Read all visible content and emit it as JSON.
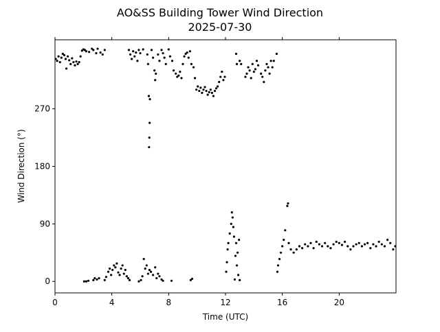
{
  "chart_data": {
    "type": "scatter",
    "title": "AO&SS Building Tower Wind Direction",
    "subtitle": "2025-07-30",
    "xlabel": "Time (UTC)",
    "ylabel": "Wind Direction (°)",
    "xlim": [
      0,
      24
    ],
    "ylim": [
      -18,
      378
    ],
    "xticks": [
      0,
      4,
      8,
      12,
      16,
      20
    ],
    "xtick_labels": [
      "0",
      "4",
      "8",
      "12",
      "16",
      "20"
    ],
    "yticks": [
      0,
      90,
      180,
      270
    ],
    "ytick_labels": [
      "0",
      "90",
      "180",
      "270"
    ],
    "grid": false,
    "marker_color": "#000000",
    "points": [
      [
        0.05,
        348
      ],
      [
        0.15,
        345
      ],
      [
        0.25,
        352
      ],
      [
        0.35,
        343
      ],
      [
        0.45,
        350
      ],
      [
        0.55,
        356
      ],
      [
        0.65,
        354
      ],
      [
        0.75,
        348
      ],
      [
        0.8,
        333
      ],
      [
        0.9,
        352
      ],
      [
        1.0,
        346
      ],
      [
        1.1,
        340
      ],
      [
        1.2,
        349
      ],
      [
        1.3,
        343
      ],
      [
        1.4,
        338
      ],
      [
        1.5,
        344
      ],
      [
        1.6,
        340
      ],
      [
        1.7,
        343
      ],
      [
        1.8,
        352
      ],
      [
        1.9,
        361
      ],
      [
        2.0,
        363
      ],
      [
        2.1,
        362
      ],
      [
        2.2,
        360
      ],
      [
        2.4,
        359
      ],
      [
        2.6,
        364
      ],
      [
        2.7,
        362
      ],
      [
        2.9,
        357
      ],
      [
        3.0,
        364
      ],
      [
        3.2,
        358
      ],
      [
        3.35,
        355
      ],
      [
        3.5,
        362
      ],
      [
        2.05,
        0
      ],
      [
        2.2,
        0
      ],
      [
        2.35,
        1
      ],
      [
        2.7,
        2
      ],
      [
        2.8,
        5
      ],
      [
        2.95,
        3
      ],
      [
        3.1,
        5
      ],
      [
        3.5,
        2
      ],
      [
        3.6,
        7
      ],
      [
        3.75,
        15
      ],
      [
        3.85,
        20
      ],
      [
        3.95,
        10
      ],
      [
        4.05,
        18
      ],
      [
        4.15,
        25
      ],
      [
        4.25,
        22
      ],
      [
        4.35,
        28
      ],
      [
        4.45,
        14
      ],
      [
        4.55,
        10
      ],
      [
        4.65,
        20
      ],
      [
        4.75,
        25
      ],
      [
        4.85,
        12
      ],
      [
        4.95,
        18
      ],
      [
        5.05,
        8
      ],
      [
        5.15,
        5
      ],
      [
        5.25,
        2
      ],
      [
        5.2,
        362
      ],
      [
        5.3,
        355
      ],
      [
        5.4,
        348
      ],
      [
        5.5,
        360
      ],
      [
        5.6,
        352
      ],
      [
        5.7,
        358
      ],
      [
        5.8,
        345
      ],
      [
        5.9,
        362
      ],
      [
        6.0,
        357
      ],
      [
        6.2,
        363
      ],
      [
        5.9,
        0
      ],
      [
        6.05,
        2
      ],
      [
        6.15,
        8
      ],
      [
        6.25,
        35
      ],
      [
        6.35,
        20
      ],
      [
        6.45,
        25
      ],
      [
        6.55,
        12
      ],
      [
        6.65,
        18
      ],
      [
        6.75,
        15
      ],
      [
        6.9,
        10
      ],
      [
        7.05,
        22
      ],
      [
        7.15,
        5
      ],
      [
        7.25,
        12
      ],
      [
        7.35,
        8
      ],
      [
        7.5,
        3
      ],
      [
        7.6,
        1
      ],
      [
        8.2,
        1
      ],
      [
        6.5,
        355
      ],
      [
        6.55,
        340
      ],
      [
        6.6,
        290
      ],
      [
        6.62,
        210
      ],
      [
        6.64,
        225
      ],
      [
        6.66,
        248
      ],
      [
        6.68,
        285
      ],
      [
        6.8,
        362
      ],
      [
        6.9,
        350
      ],
      [
        7.0,
        330
      ],
      [
        7.05,
        315
      ],
      [
        7.1,
        325
      ],
      [
        7.25,
        355
      ],
      [
        7.35,
        345
      ],
      [
        7.5,
        362
      ],
      [
        7.6,
        357
      ],
      [
        7.7,
        350
      ],
      [
        7.8,
        340
      ],
      [
        8.0,
        363
      ],
      [
        8.1,
        352
      ],
      [
        8.25,
        345
      ],
      [
        8.35,
        330
      ],
      [
        8.5,
        325
      ],
      [
        8.6,
        320
      ],
      [
        8.7,
        322
      ],
      [
        8.8,
        328
      ],
      [
        8.9,
        318
      ],
      [
        9.0,
        340
      ],
      [
        9.1,
        352
      ],
      [
        9.2,
        356
      ],
      [
        9.3,
        358
      ],
      [
        9.4,
        350
      ],
      [
        9.5,
        360
      ],
      [
        9.6,
        340
      ],
      [
        9.55,
        2
      ],
      [
        9.65,
        4
      ],
      [
        9.75,
        335
      ],
      [
        9.85,
        318
      ],
      [
        9.95,
        300
      ],
      [
        10.05,
        305
      ],
      [
        10.15,
        298
      ],
      [
        10.25,
        303
      ],
      [
        10.35,
        295
      ],
      [
        10.45,
        300
      ],
      [
        10.55,
        304
      ],
      [
        10.65,
        298
      ],
      [
        10.75,
        292
      ],
      [
        10.85,
        296
      ],
      [
        10.95,
        300
      ],
      [
        11.05,
        295
      ],
      [
        11.15,
        290
      ],
      [
        11.25,
        298
      ],
      [
        11.35,
        302
      ],
      [
        11.45,
        305
      ],
      [
        11.55,
        312
      ],
      [
        11.65,
        320
      ],
      [
        11.75,
        328
      ],
      [
        11.85,
        315
      ],
      [
        11.95,
        320
      ],
      [
        12.05,
        15
      ],
      [
        12.1,
        30
      ],
      [
        12.15,
        50
      ],
      [
        12.2,
        60
      ],
      [
        12.3,
        75
      ],
      [
        12.4,
        90
      ],
      [
        12.45,
        108
      ],
      [
        12.5,
        100
      ],
      [
        12.55,
        85
      ],
      [
        12.6,
        70
      ],
      [
        12.65,
        3
      ],
      [
        12.7,
        40
      ],
      [
        12.75,
        60
      ],
      [
        12.8,
        25
      ],
      [
        12.85,
        45
      ],
      [
        12.9,
        10
      ],
      [
        12.95,
        65
      ],
      [
        13.0,
        2
      ],
      [
        12.75,
        356
      ],
      [
        12.8,
        340
      ],
      [
        13.0,
        345
      ],
      [
        13.1,
        340
      ],
      [
        13.4,
        320
      ],
      [
        13.5,
        325
      ],
      [
        13.6,
        335
      ],
      [
        13.7,
        330
      ],
      [
        13.8,
        318
      ],
      [
        13.9,
        340
      ],
      [
        14.0,
        328
      ],
      [
        14.1,
        332
      ],
      [
        14.2,
        345
      ],
      [
        14.3,
        338
      ],
      [
        14.5,
        325
      ],
      [
        14.6,
        320
      ],
      [
        14.7,
        312
      ],
      [
        14.8,
        330
      ],
      [
        14.9,
        340
      ],
      [
        15.0,
        335
      ],
      [
        15.1,
        325
      ],
      [
        15.2,
        345
      ],
      [
        15.3,
        335
      ],
      [
        15.4,
        345
      ],
      [
        15.6,
        356
      ],
      [
        15.65,
        15
      ],
      [
        15.7,
        25
      ],
      [
        15.8,
        35
      ],
      [
        15.9,
        45
      ],
      [
        16.0,
        55
      ],
      [
        16.1,
        65
      ],
      [
        16.2,
        80
      ],
      [
        16.35,
        118
      ],
      [
        16.4,
        122
      ],
      [
        16.45,
        60
      ],
      [
        16.6,
        50
      ],
      [
        16.8,
        45
      ],
      [
        17.0,
        50
      ],
      [
        17.2,
        55
      ],
      [
        17.4,
        52
      ],
      [
        17.6,
        58
      ],
      [
        17.8,
        55
      ],
      [
        18.0,
        60
      ],
      [
        18.2,
        52
      ],
      [
        18.4,
        62
      ],
      [
        18.6,
        58
      ],
      [
        18.8,
        55
      ],
      [
        19.0,
        60
      ],
      [
        19.2,
        55
      ],
      [
        19.4,
        52
      ],
      [
        19.6,
        58
      ],
      [
        19.8,
        62
      ],
      [
        20.0,
        60
      ],
      [
        20.2,
        57
      ],
      [
        20.4,
        62
      ],
      [
        20.6,
        55
      ],
      [
        20.8,
        50
      ],
      [
        21.0,
        55
      ],
      [
        21.2,
        58
      ],
      [
        21.4,
        60
      ],
      [
        21.6,
        55
      ],
      [
        21.8,
        58
      ],
      [
        22.0,
        60
      ],
      [
        22.2,
        52
      ],
      [
        22.4,
        58
      ],
      [
        22.6,
        55
      ],
      [
        22.8,
        62
      ],
      [
        23.0,
        58
      ],
      [
        23.2,
        55
      ],
      [
        23.4,
        65
      ],
      [
        23.6,
        60
      ],
      [
        23.8,
        50
      ],
      [
        23.95,
        55
      ]
    ]
  }
}
